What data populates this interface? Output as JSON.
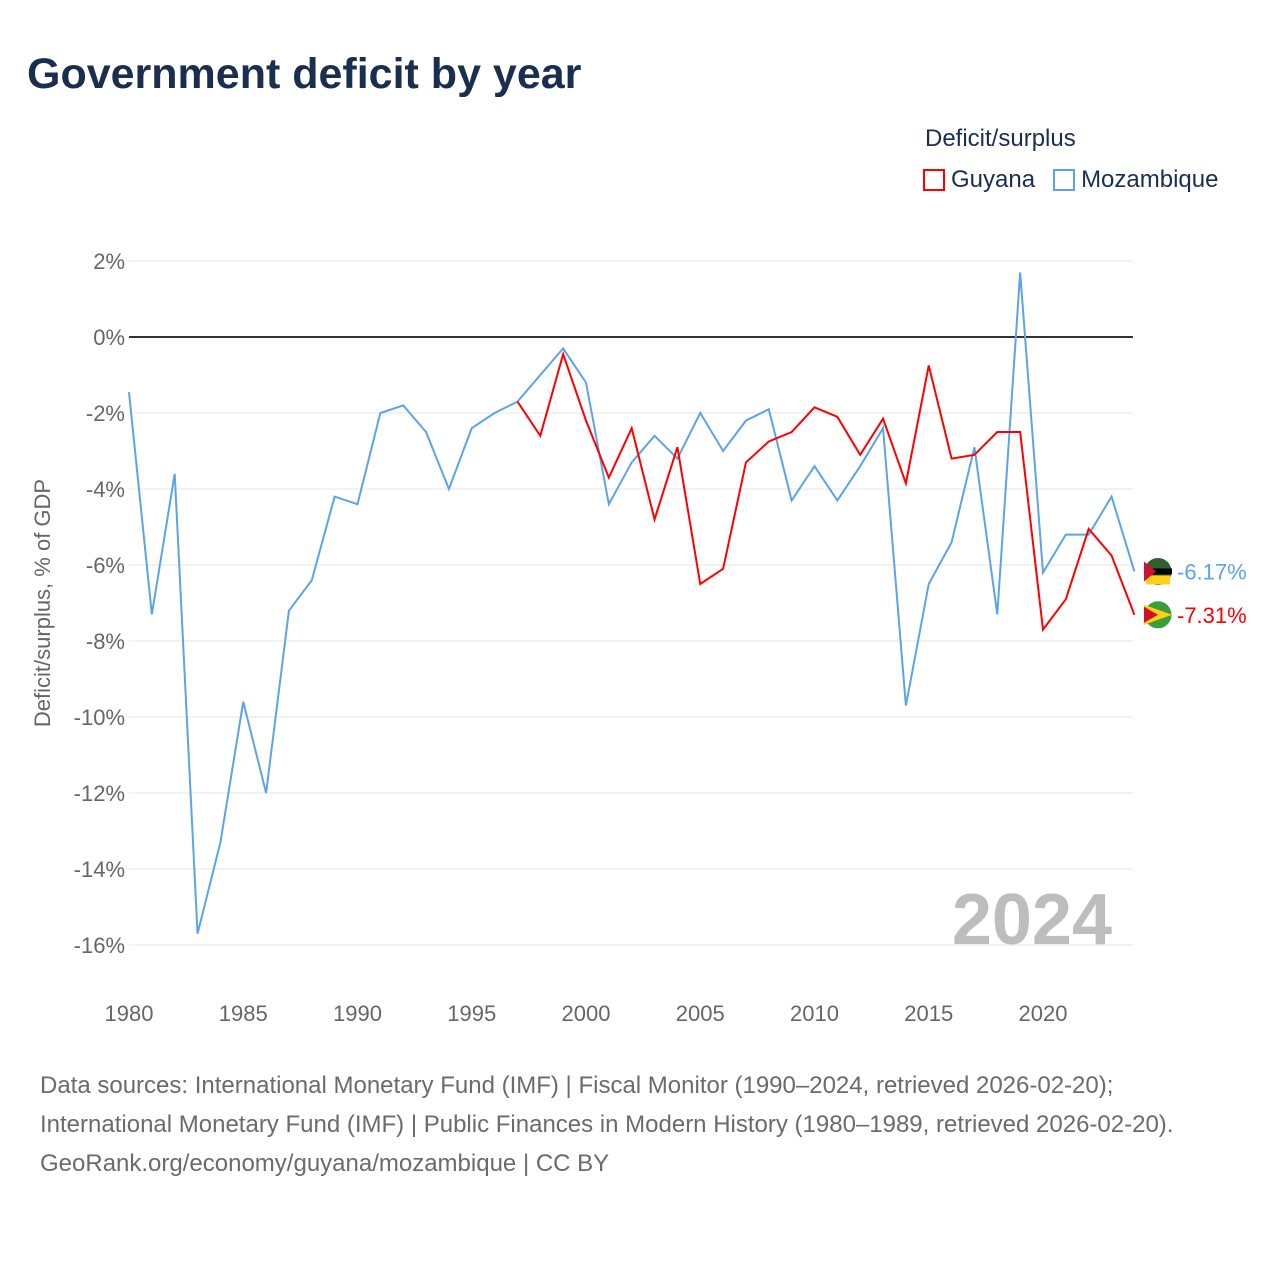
{
  "title": "Government deficit by year",
  "legend": {
    "title": "Deficit/surplus",
    "items": [
      {
        "name": "Guyana",
        "color": "#ff0000"
      },
      {
        "name": "Mozambique",
        "color": "#5ba4e8"
      }
    ]
  },
  "footer": {
    "sources": "Data sources: International Monetary Fund (IMF) | Fiscal Monitor (1990–2024, retrieved 2026-02-20); International Monetary Fund (IMF) | Public Finances in Modern History (1980–1989, retrieved 2026-02-20).",
    "credit": "GeoRank.org/economy/guyana/mozambique | CC BY"
  },
  "chart_data": {
    "type": "line",
    "title": "Government deficit by year",
    "ylabel": "Deficit/surplus, % of GDP",
    "xlabel": "",
    "xlim": [
      1980,
      2024
    ],
    "ylim": [
      -17,
      2.5
    ],
    "x_ticks": [
      1980,
      1985,
      1990,
      1995,
      2000,
      2005,
      2010,
      2015,
      2020
    ],
    "y_ticks": [
      2,
      0,
      -2,
      -4,
      -6,
      -8,
      -10,
      -12,
      -14,
      -16
    ],
    "y_tick_labels": [
      "2%",
      "0%",
      "-2%",
      "-4%",
      "-6%",
      "-8%",
      "-10%",
      "-12%",
      "-14%",
      "-16%"
    ],
    "year_watermark": "2024",
    "series": [
      {
        "name": "Mozambique",
        "color": "#5ba4e8",
        "end_label": "-6.17%",
        "start": 1980,
        "values": [
          -1.45,
          -7.3,
          -3.6,
          -15.7,
          -13.3,
          -9.6,
          -12.0,
          -7.2,
          -6.4,
          -4.2,
          -4.4,
          -2.0,
          -1.8,
          -2.5,
          -4.0,
          -2.4,
          -2.0,
          -1.7,
          -1.0,
          -0.3,
          -1.2,
          -4.4,
          -3.3,
          -2.6,
          -3.2,
          -2.0,
          -3.0,
          -2.2,
          -1.9,
          -4.3,
          -3.4,
          -4.3,
          -3.4,
          -2.4,
          -9.7,
          -6.5,
          -5.4,
          -2.9,
          -7.3,
          1.7,
          -6.2,
          -5.2,
          -5.2,
          -4.2,
          -6.17
        ]
      },
      {
        "name": "Guyana",
        "color": "#ff0000",
        "end_label": "-7.31%",
        "start": 1997,
        "values": [
          -1.7,
          -2.6,
          -0.45,
          -2.2,
          -3.7,
          -2.4,
          -4.8,
          -2.9,
          -6.5,
          -6.1,
          -3.3,
          -2.75,
          -2.5,
          -1.85,
          -2.1,
          -3.1,
          -2.15,
          -3.85,
          -0.75,
          -3.2,
          -3.1,
          -2.5,
          -2.5,
          -7.7,
          -6.9,
          -5.05,
          -5.75,
          -7.31
        ]
      }
    ]
  }
}
